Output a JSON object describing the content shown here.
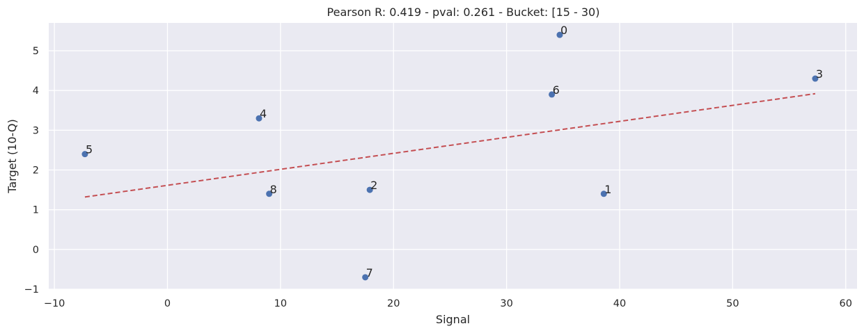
{
  "chart_data": {
    "type": "scatter",
    "title": "Pearson R: 0.419 - pval: 0.261 - Bucket: [15 - 30)",
    "xlabel": "Signal",
    "ylabel": "Target (10-Q)",
    "xlim": [
      -10.5,
      61
    ],
    "ylim": [
      -1,
      5.7
    ],
    "xticks": [
      -10,
      0,
      10,
      20,
      30,
      40,
      50,
      60
    ],
    "xtick_labels": [
      "−10",
      "0",
      "10",
      "20",
      "30",
      "40",
      "50",
      "60"
    ],
    "yticks": [
      -1,
      0,
      1,
      2,
      3,
      4,
      5
    ],
    "ytick_labels": [
      "−1",
      "0",
      "1",
      "2",
      "3",
      "4",
      "5"
    ],
    "grid": true,
    "background": "#eaeaf2",
    "point_color": "#4c72b0",
    "line_color": "#c44e52",
    "points": [
      {
        "label": "0",
        "x": 34.7,
        "y": 5.4
      },
      {
        "label": "1",
        "x": 38.6,
        "y": 1.4
      },
      {
        "label": "2",
        "x": 17.9,
        "y": 1.5
      },
      {
        "label": "3",
        "x": 57.3,
        "y": 4.3
      },
      {
        "label": "4",
        "x": 8.1,
        "y": 3.3
      },
      {
        "label": "5",
        "x": -7.3,
        "y": 2.4
      },
      {
        "label": "6",
        "x": 34.0,
        "y": 3.9
      },
      {
        "label": "7",
        "x": 17.5,
        "y": -0.7
      },
      {
        "label": "8",
        "x": 9.0,
        "y": 1.4
      }
    ],
    "regression_line": {
      "style": "dashed",
      "x": [
        -7.3,
        57.3
      ],
      "y": [
        1.32,
        3.92
      ]
    }
  }
}
